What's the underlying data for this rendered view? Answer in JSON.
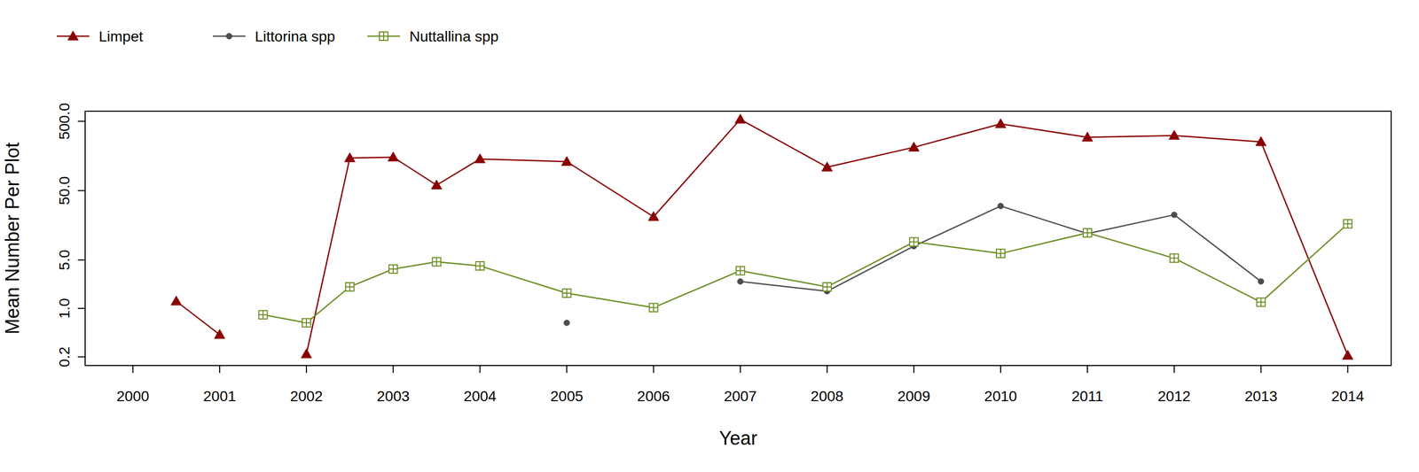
{
  "chart_data": {
    "type": "line",
    "x_label": "Year",
    "y_label": "Mean Number Per Plot",
    "log": "y",
    "legend": "top-left",
    "x": [
      2000.5,
      2001,
      2001.5,
      2002,
      2002.5,
      2003,
      2003.5,
      2004,
      2005,
      2006,
      2007,
      2008,
      2009,
      2010,
      2011,
      2012,
      2013,
      2014
    ],
    "xlim": [
      1999.45,
      2014.5
    ],
    "xticks": [
      2000,
      2001,
      2002,
      2003,
      2004,
      2005,
      2006,
      2007,
      2008,
      2009,
      2010,
      2011,
      2012,
      2013,
      2014
    ],
    "ylim": [
      0.15,
      700
    ],
    "yticks": [
      0.2,
      {
        "value": 1,
        "label": "1.0"
      },
      {
        "value": 5,
        "label": "5.0"
      },
      {
        "value": 50,
        "label": "50.0"
      },
      {
        "value": 500,
        "label": "500.0"
      }
    ],
    "series": [
      {
        "name": "Limpet",
        "color": "#8b0000",
        "marker": "triangle",
        "values": [
          1.27,
          0.42,
          null,
          0.22,
          148,
          152,
          60,
          143,
          131,
          21,
          534,
          109,
          211,
          459,
          294,
          312,
          253,
          0.21
        ]
      },
      {
        "name": "Littorina spp",
        "color": "#4d4d4d",
        "marker": "circle",
        "values": [
          null,
          null,
          null,
          null,
          null,
          null,
          null,
          null,
          0.62,
          null,
          2.45,
          1.77,
          7.9,
          30,
          12,
          22.4,
          2.45,
          null
        ]
      },
      {
        "name": "Nuttallina spp",
        "color": "#6b8e23",
        "marker": "square-plus",
        "values": [
          null,
          null,
          0.81,
          0.62,
          2.05,
          3.7,
          4.7,
          4.1,
          1.66,
          1.03,
          3.5,
          2.05,
          9.1,
          6.2,
          12.3,
          5.3,
          1.23,
          16.6
        ]
      }
    ]
  }
}
